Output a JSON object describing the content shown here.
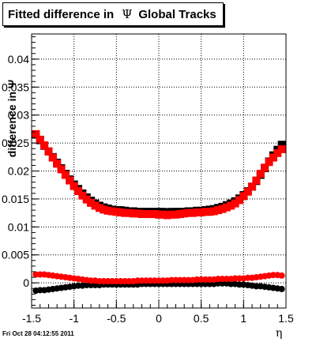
{
  "title": {
    "prefix": "Fitted difference in",
    "symbol": "Ψ",
    "suffix": "Global Tracks"
  },
  "footer": "Fri Oct 28 04:12:55 2011",
  "chart_data": {
    "type": "scatter",
    "xlabel": "η",
    "ylabel": "difference in Ψ",
    "xlim": [
      -1.5,
      1.5
    ],
    "ylim": [
      -0.0045,
      0.0445
    ],
    "x_ticks": [
      "-1.5",
      "-1",
      "-0.5",
      "0",
      "0.5",
      "1",
      "1.5"
    ],
    "x_tick_values": [
      -1.5,
      -1,
      -0.5,
      0,
      0.5,
      1,
      1.5
    ],
    "y_ticks": [
      "0",
      "0.005",
      "0.01",
      "0.015",
      "0.02",
      "0.025",
      "0.03",
      "0.035",
      "0.04"
    ],
    "y_tick_values": [
      0,
      0.005,
      0.01,
      0.015,
      0.02,
      0.025,
      0.03,
      0.035,
      0.04
    ],
    "grid": true,
    "series": [
      {
        "color": "#000000",
        "marker": "square",
        "points": [
          [
            -1.45,
            0.0265
          ],
          [
            -1.4,
            0.0255
          ],
          [
            -1.35,
            0.0245
          ],
          [
            -1.3,
            0.0235
          ],
          [
            -1.25,
            0.0225
          ],
          [
            -1.2,
            0.0215
          ],
          [
            -1.15,
            0.0205
          ],
          [
            -1.1,
            0.0195
          ],
          [
            -1.05,
            0.0185
          ],
          [
            -1.0,
            0.0176
          ],
          [
            -0.95,
            0.0168
          ],
          [
            -0.9,
            0.016
          ],
          [
            -0.85,
            0.0153
          ],
          [
            -0.8,
            0.0147
          ],
          [
            -0.75,
            0.0142
          ],
          [
            -0.7,
            0.0138
          ],
          [
            -0.65,
            0.0135
          ],
          [
            -0.6,
            0.0133
          ],
          [
            -0.55,
            0.0131
          ],
          [
            -0.5,
            0.013
          ],
          [
            -0.45,
            0.013
          ],
          [
            -0.4,
            0.0129
          ],
          [
            -0.35,
            0.0128
          ],
          [
            -0.3,
            0.0128
          ],
          [
            -0.25,
            0.0127
          ],
          [
            -0.2,
            0.0127
          ],
          [
            -0.15,
            0.0127
          ],
          [
            -0.1,
            0.0127
          ],
          [
            -0.05,
            0.0127
          ],
          [
            0.0,
            0.0127
          ],
          [
            0.05,
            0.0127
          ],
          [
            0.1,
            0.0126
          ],
          [
            0.15,
            0.0127
          ],
          [
            0.2,
            0.0127
          ],
          [
            0.25,
            0.0127
          ],
          [
            0.3,
            0.0127
          ],
          [
            0.35,
            0.0128
          ],
          [
            0.4,
            0.0128
          ],
          [
            0.45,
            0.0129
          ],
          [
            0.5,
            0.0129
          ],
          [
            0.55,
            0.013
          ],
          [
            0.6,
            0.0131
          ],
          [
            0.65,
            0.0132
          ],
          [
            0.7,
            0.0134
          ],
          [
            0.75,
            0.0136
          ],
          [
            0.8,
            0.0139
          ],
          [
            0.85,
            0.0142
          ],
          [
            0.9,
            0.0146
          ],
          [
            0.95,
            0.0151
          ],
          [
            1.0,
            0.0157
          ],
          [
            1.05,
            0.0164
          ],
          [
            1.1,
            0.0172
          ],
          [
            1.15,
            0.0182
          ],
          [
            1.2,
            0.0193
          ],
          [
            1.25,
            0.0205
          ],
          [
            1.3,
            0.0217
          ],
          [
            1.35,
            0.0228
          ],
          [
            1.4,
            0.0238
          ],
          [
            1.45,
            0.0247
          ]
        ]
      },
      {
        "color": "#ff0000",
        "marker": "square",
        "points": [
          [
            -1.45,
            0.0266
          ],
          [
            -1.4,
            0.0256
          ],
          [
            -1.35,
            0.0246
          ],
          [
            -1.3,
            0.0235
          ],
          [
            -1.25,
            0.0224
          ],
          [
            -1.2,
            0.0213
          ],
          [
            -1.15,
            0.0203
          ],
          [
            -1.1,
            0.0193
          ],
          [
            -1.05,
            0.0183
          ],
          [
            -1.0,
            0.0173
          ],
          [
            -0.95,
            0.0164
          ],
          [
            -0.9,
            0.0156
          ],
          [
            -0.85,
            0.0149
          ],
          [
            -0.8,
            0.0143
          ],
          [
            -0.75,
            0.0138
          ],
          [
            -0.7,
            0.0134
          ],
          [
            -0.65,
            0.0131
          ],
          [
            -0.6,
            0.0129
          ],
          [
            -0.55,
            0.0128
          ],
          [
            -0.5,
            0.0127
          ],
          [
            -0.45,
            0.0126
          ],
          [
            -0.4,
            0.0125
          ],
          [
            -0.35,
            0.0125
          ],
          [
            -0.3,
            0.0124
          ],
          [
            -0.25,
            0.0124
          ],
          [
            -0.2,
            0.0123
          ],
          [
            -0.15,
            0.0123
          ],
          [
            -0.1,
            0.0123
          ],
          [
            -0.05,
            0.0123
          ],
          [
            0.0,
            0.0122
          ],
          [
            0.05,
            0.0122
          ],
          [
            0.1,
            0.0121
          ],
          [
            0.15,
            0.0122
          ],
          [
            0.2,
            0.0122
          ],
          [
            0.25,
            0.0123
          ],
          [
            0.3,
            0.0124
          ],
          [
            0.35,
            0.0125
          ],
          [
            0.4,
            0.0125
          ],
          [
            0.45,
            0.0126
          ],
          [
            0.5,
            0.0126
          ],
          [
            0.55,
            0.0127
          ],
          [
            0.6,
            0.0127
          ],
          [
            0.65,
            0.0128
          ],
          [
            0.7,
            0.013
          ],
          [
            0.75,
            0.0132
          ],
          [
            0.8,
            0.0135
          ],
          [
            0.85,
            0.0138
          ],
          [
            0.9,
            0.0142
          ],
          [
            0.95,
            0.0148
          ],
          [
            1.0,
            0.0155
          ],
          [
            1.05,
            0.0163
          ],
          [
            1.1,
            0.0172
          ],
          [
            1.15,
            0.0183
          ],
          [
            1.2,
            0.0195
          ],
          [
            1.25,
            0.0206
          ],
          [
            1.3,
            0.0216
          ],
          [
            1.35,
            0.0224
          ],
          [
            1.4,
            0.0232
          ],
          [
            1.45,
            0.0239
          ]
        ]
      },
      {
        "color": "#000000",
        "marker": "circle",
        "points": [
          [
            -1.45,
            -0.0014
          ],
          [
            -1.4,
            -0.0013
          ],
          [
            -1.35,
            -0.0013
          ],
          [
            -1.3,
            -0.0012
          ],
          [
            -1.25,
            -0.0011
          ],
          [
            -1.2,
            -0.001
          ],
          [
            -1.15,
            -0.0009
          ],
          [
            -1.1,
            -0.0008
          ],
          [
            -1.05,
            -0.0007
          ],
          [
            -1.0,
            -0.0006
          ],
          [
            -0.95,
            -0.0005
          ],
          [
            -0.9,
            -0.0005
          ],
          [
            -0.85,
            -0.0004
          ],
          [
            -0.8,
            -0.0004
          ],
          [
            -0.75,
            -0.0004
          ],
          [
            -0.7,
            -0.0004
          ],
          [
            -0.65,
            -0.0003
          ],
          [
            -0.6,
            -0.0003
          ],
          [
            -0.55,
            -0.0003
          ],
          [
            -0.5,
            -0.0003
          ],
          [
            -0.45,
            -0.0003
          ],
          [
            -0.4,
            -0.0003
          ],
          [
            -0.35,
            -0.0003
          ],
          [
            -0.3,
            -0.0003
          ],
          [
            -0.25,
            -0.0003
          ],
          [
            -0.2,
            -0.0002
          ],
          [
            -0.15,
            -0.0002
          ],
          [
            -0.1,
            -0.0002
          ],
          [
            -0.05,
            -0.0002
          ],
          [
            0.0,
            -0.0002
          ],
          [
            0.05,
            -0.0002
          ],
          [
            0.1,
            -0.0002
          ],
          [
            0.15,
            -0.0002
          ],
          [
            0.2,
            -0.0002
          ],
          [
            0.25,
            -0.0002
          ],
          [
            0.3,
            -0.0002
          ],
          [
            0.35,
            -0.0002
          ],
          [
            0.4,
            -0.0002
          ],
          [
            0.45,
            -0.0002
          ],
          [
            0.5,
            -0.0002
          ],
          [
            0.55,
            -0.0002
          ],
          [
            0.6,
            -0.0002
          ],
          [
            0.65,
            -0.0002
          ],
          [
            0.7,
            -0.0001
          ],
          [
            0.75,
            -0.0001
          ],
          [
            0.8,
            -0.0001
          ],
          [
            0.85,
            -0.0002
          ],
          [
            0.9,
            -0.0002
          ],
          [
            0.95,
            -0.0003
          ],
          [
            1.0,
            -0.0003
          ],
          [
            1.05,
            -0.0004
          ],
          [
            1.1,
            -0.0005
          ],
          [
            1.15,
            -0.0006
          ],
          [
            1.2,
            -0.0006
          ],
          [
            1.25,
            -0.0007
          ],
          [
            1.3,
            -0.0008
          ],
          [
            1.35,
            -0.0009
          ],
          [
            1.4,
            -0.001
          ],
          [
            1.45,
            -0.0011
          ]
        ]
      },
      {
        "color": "#ff0000",
        "marker": "circle",
        "points": [
          [
            -1.45,
            0.0015
          ],
          [
            -1.4,
            0.0015
          ],
          [
            -1.35,
            0.0015
          ],
          [
            -1.3,
            0.0014
          ],
          [
            -1.25,
            0.0013
          ],
          [
            -1.2,
            0.0012
          ],
          [
            -1.15,
            0.0011
          ],
          [
            -1.1,
            0.001
          ],
          [
            -1.05,
            0.0009
          ],
          [
            -1.0,
            0.0008
          ],
          [
            -0.95,
            0.0007
          ],
          [
            -0.9,
            0.0006
          ],
          [
            -0.85,
            0.0005
          ],
          [
            -0.8,
            0.0004
          ],
          [
            -0.75,
            0.0004
          ],
          [
            -0.7,
            0.0003
          ],
          [
            -0.65,
            0.0003
          ],
          [
            -0.6,
            0.0003
          ],
          [
            -0.55,
            0.0003
          ],
          [
            -0.5,
            0.0003
          ],
          [
            -0.45,
            0.0003
          ],
          [
            -0.4,
            0.0003
          ],
          [
            -0.35,
            0.0003
          ],
          [
            -0.3,
            0.0003
          ],
          [
            -0.25,
            0.0004
          ],
          [
            -0.2,
            0.0004
          ],
          [
            -0.15,
            0.0004
          ],
          [
            -0.1,
            0.0004
          ],
          [
            -0.05,
            0.0004
          ],
          [
            0.0,
            0.0004
          ],
          [
            0.05,
            0.0004
          ],
          [
            0.1,
            0.0004
          ],
          [
            0.15,
            0.0005
          ],
          [
            0.2,
            0.0005
          ],
          [
            0.25,
            0.0005
          ],
          [
            0.3,
            0.0005
          ],
          [
            0.35,
            0.0005
          ],
          [
            0.4,
            0.0005
          ],
          [
            0.45,
            0.0006
          ],
          [
            0.5,
            0.0006
          ],
          [
            0.55,
            0.0006
          ],
          [
            0.6,
            0.0006
          ],
          [
            0.65,
            0.0006
          ],
          [
            0.7,
            0.0007
          ],
          [
            0.75,
            0.0007
          ],
          [
            0.8,
            0.0007
          ],
          [
            0.85,
            0.0007
          ],
          [
            0.9,
            0.0008
          ],
          [
            0.95,
            0.0008
          ],
          [
            1.0,
            0.0008
          ],
          [
            1.05,
            0.0009
          ],
          [
            1.1,
            0.0009
          ],
          [
            1.15,
            0.001
          ],
          [
            1.2,
            0.0011
          ],
          [
            1.25,
            0.0012
          ],
          [
            1.3,
            0.0013
          ],
          [
            1.35,
            0.0014
          ],
          [
            1.4,
            0.0014
          ],
          [
            1.45,
            0.0013
          ]
        ]
      }
    ]
  }
}
